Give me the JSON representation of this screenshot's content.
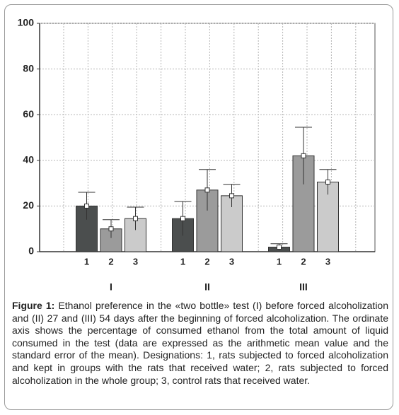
{
  "chart_data": {
    "type": "bar",
    "categories": [
      "I",
      "II",
      "III"
    ],
    "series": [
      {
        "name": "1",
        "color": "#4b4e4e",
        "values": [
          20,
          14.5,
          2
        ],
        "errors": [
          6,
          7.5,
          1.5
        ]
      },
      {
        "name": "2",
        "color": "#9b9b9b",
        "values": [
          10,
          27,
          42
        ],
        "errors": [
          4,
          9,
          12.5
        ]
      },
      {
        "name": "3",
        "color": "#cbcbcb",
        "values": [
          14.5,
          24.5,
          30.5
        ],
        "errors": [
          5,
          5,
          5.5
        ]
      }
    ],
    "ylim": [
      0,
      100
    ],
    "yticks": [
      0,
      20,
      40,
      60,
      80,
      100
    ],
    "grid": true
  },
  "caption": {
    "label": "Figure 1:",
    "text": "Ethanol preference in the «two bottle» test (I) before forced alcoholization and (II) 27 and (III) 54 days after the beginning of forced alcoholization. The ordinate axis shows the percentage of consumed ethanol from the total amount of liquid consumed in the test (data are expressed as the arithmetic mean value and the standard error of the mean). Designations: 1, rats subjected to forced alcoholization and kept in groups with the rats that received water; 2, rats subjected to forced alcoholization in the whole group; 3, control rats that received water."
  }
}
